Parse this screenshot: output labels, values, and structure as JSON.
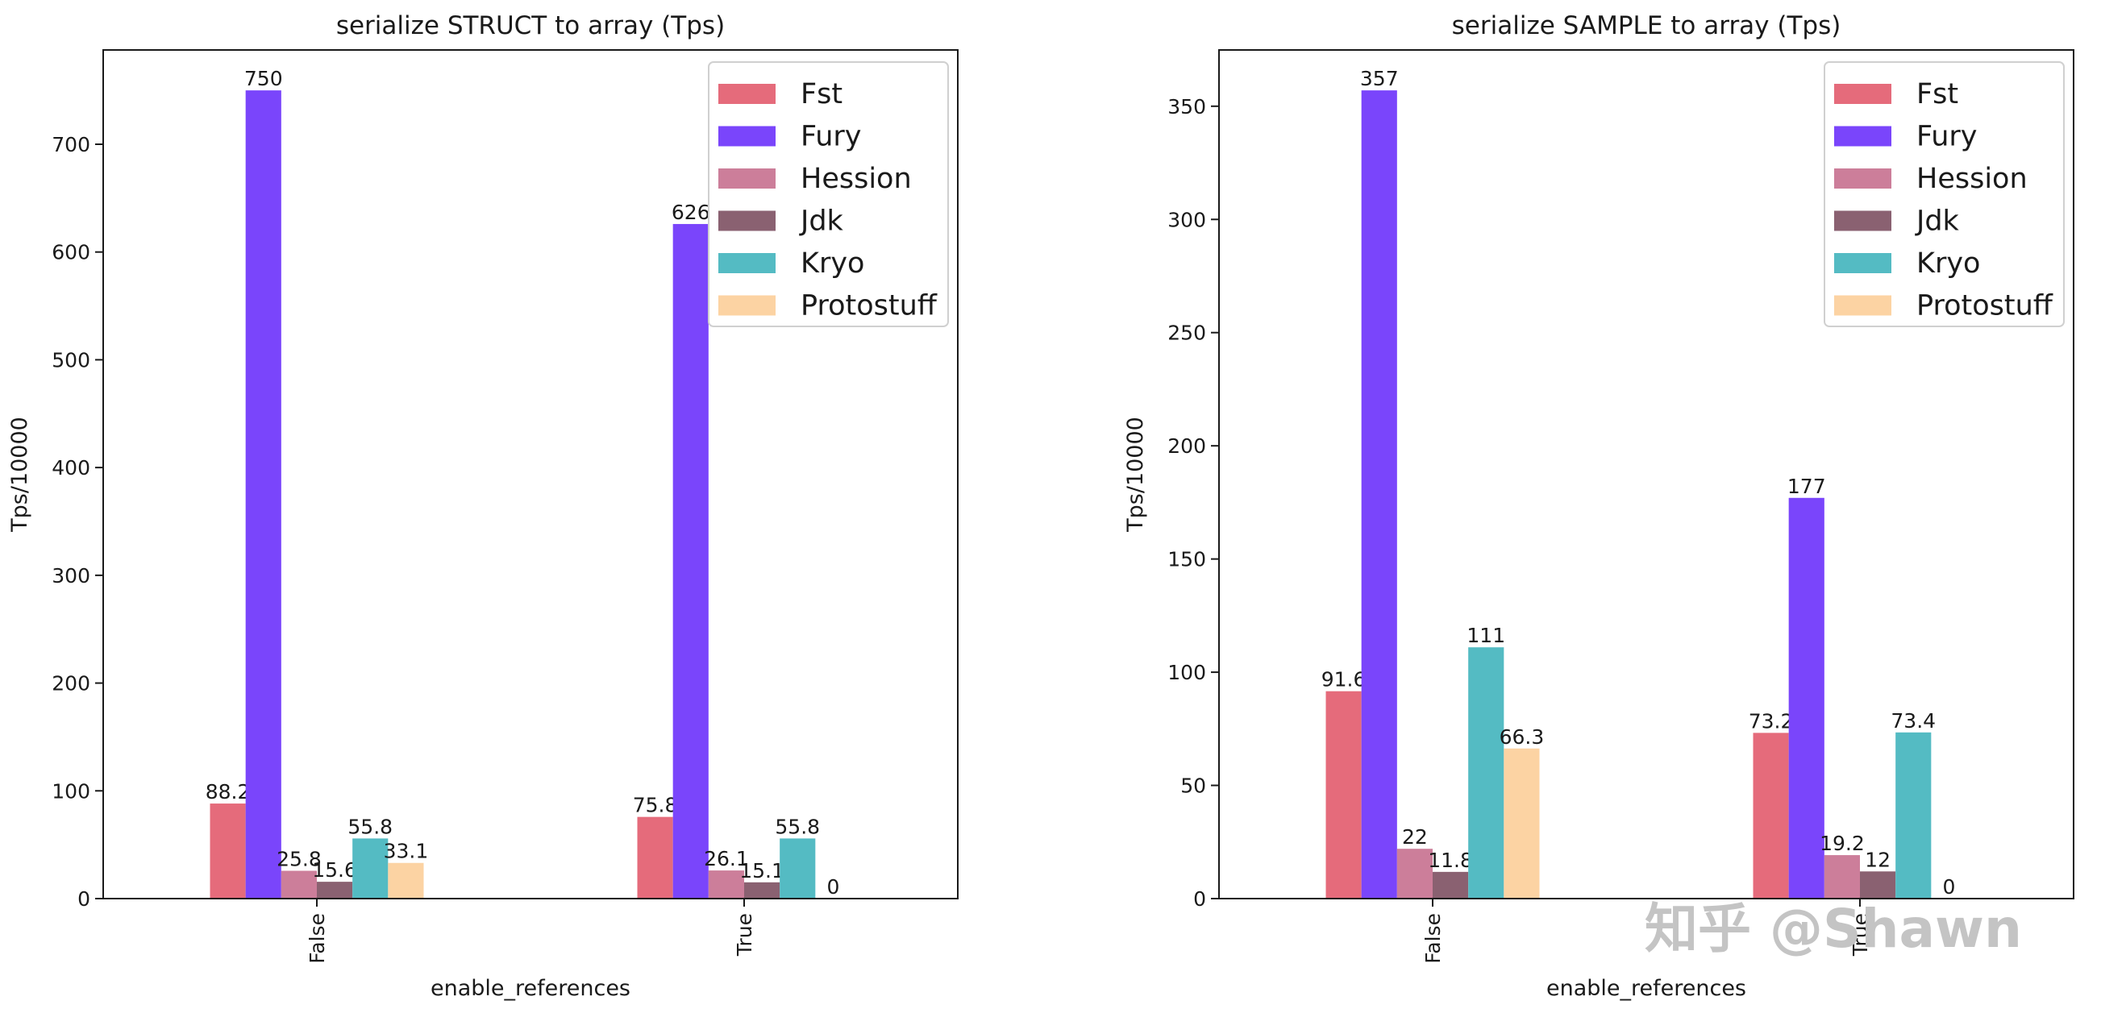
{
  "chart_data": [
    {
      "type": "bar",
      "title": "serialize STRUCT to array (Tps)",
      "xlabel": "enable_references",
      "ylabel": "Tps/10000",
      "categories": [
        "False",
        "True"
      ],
      "ylim": [
        0,
        787.5
      ],
      "yticks": [
        0,
        100,
        200,
        300,
        400,
        500,
        600,
        700
      ],
      "legend_position": "top-right",
      "series": [
        {
          "name": "Fst",
          "color": "#e56b7b",
          "values": [
            88.2,
            75.8
          ],
          "labels": [
            "88.2",
            "75.8"
          ]
        },
        {
          "name": "Fury",
          "color": "#7a45fb",
          "values": [
            750,
            626
          ],
          "labels": [
            "750",
            "626"
          ]
        },
        {
          "name": "Hession",
          "color": "#cc7e9a",
          "values": [
            25.8,
            26.1
          ],
          "labels": [
            "25.8",
            "26.1"
          ]
        },
        {
          "name": "Jdk",
          "color": "#8a6171",
          "values": [
            15.6,
            15.1
          ],
          "labels": [
            "15.6",
            "15.1"
          ]
        },
        {
          "name": "Kryo",
          "color": "#54bbc3",
          "values": [
            55.8,
            55.8
          ],
          "labels": [
            "55.8",
            "55.8"
          ]
        },
        {
          "name": "Protostuff",
          "color": "#fcd3a3",
          "values": [
            33.1,
            0
          ],
          "labels": [
            "33.1",
            "0"
          ]
        }
      ]
    },
    {
      "type": "bar",
      "title": "serialize SAMPLE to array (Tps)",
      "xlabel": "enable_references",
      "ylabel": "Tps/10000",
      "categories": [
        "False",
        "True"
      ],
      "ylim": [
        0,
        374.85
      ],
      "yticks": [
        0,
        50,
        100,
        150,
        200,
        250,
        300,
        350
      ],
      "legend_position": "top-right",
      "series": [
        {
          "name": "Fst",
          "color": "#e56b7b",
          "values": [
            91.6,
            73.2
          ],
          "labels": [
            "91.6",
            "73.2"
          ]
        },
        {
          "name": "Fury",
          "color": "#7a45fb",
          "values": [
            357,
            177
          ],
          "labels": [
            "357",
            "177"
          ]
        },
        {
          "name": "Hession",
          "color": "#cc7e9a",
          "values": [
            22,
            19.2
          ],
          "labels": [
            "22",
            "19.2"
          ]
        },
        {
          "name": "Jdk",
          "color": "#8a6171",
          "values": [
            11.8,
            12
          ],
          "labels": [
            "11.8",
            "12"
          ]
        },
        {
          "name": "Kryo",
          "color": "#54bbc3",
          "values": [
            111,
            73.4
          ],
          "labels": [
            "111",
            "73.4"
          ]
        },
        {
          "name": "Protostuff",
          "color": "#fcd3a3",
          "values": [
            66.3,
            0
          ],
          "labels": [
            "66.3",
            "0"
          ]
        }
      ]
    }
  ],
  "watermark": "知乎 @Shawn"
}
